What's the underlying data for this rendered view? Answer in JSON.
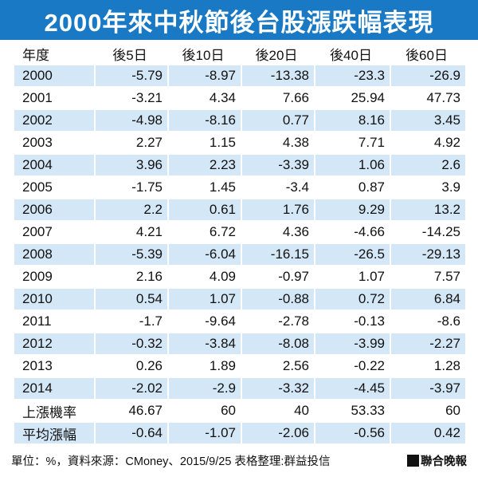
{
  "title": "2000年來中秋節後台股漲跌幅表現",
  "table": {
    "headers": [
      "年度",
      "後5日",
      "後10日",
      "後20日",
      "後40日",
      "後60日"
    ],
    "rows": [
      [
        "2000",
        "-5.79",
        "-8.97",
        "-13.38",
        "-23.3",
        "-26.9"
      ],
      [
        "2001",
        "-3.21",
        "4.34",
        "7.66",
        "25.94",
        "47.73"
      ],
      [
        "2002",
        "-4.98",
        "-8.16",
        "0.77",
        "8.16",
        "3.45"
      ],
      [
        "2003",
        "2.27",
        "1.15",
        "4.38",
        "7.71",
        "4.92"
      ],
      [
        "2004",
        "3.96",
        "2.23",
        "-3.39",
        "1.06",
        "2.6"
      ],
      [
        "2005",
        "-1.75",
        "1.45",
        "-3.4",
        "0.87",
        "3.9"
      ],
      [
        "2006",
        "2.2",
        "0.61",
        "1.76",
        "9.29",
        "13.2"
      ],
      [
        "2007",
        "4.21",
        "6.72",
        "4.36",
        "-4.66",
        "-14.25"
      ],
      [
        "2008",
        "-5.39",
        "-6.04",
        "-16.15",
        "-26.5",
        "-29.13"
      ],
      [
        "2009",
        "2.16",
        "4.09",
        "-0.97",
        "1.07",
        "7.57"
      ],
      [
        "2010",
        "0.54",
        "1.07",
        "-0.88",
        "0.72",
        "6.84"
      ],
      [
        "2011",
        "-1.7",
        "-9.64",
        "-2.78",
        "-0.13",
        "-8.6"
      ],
      [
        "2012",
        "-0.32",
        "-3.84",
        "-8.08",
        "-3.99",
        "-2.27"
      ],
      [
        "2013",
        "0.26",
        "1.89",
        "2.56",
        "-0.22",
        "1.28"
      ],
      [
        "2014",
        "-2.02",
        "-2.9",
        "-3.32",
        "-4.45",
        "-3.97"
      ],
      [
        "上漲機率",
        "46.67",
        "60",
        "40",
        "53.33",
        "60"
      ],
      [
        "平均漲幅",
        "-0.64",
        "-1.07",
        "-2.06",
        "-0.56",
        "0.42"
      ]
    ]
  },
  "footer": {
    "source": "單位：%，資料來源：CMoney、2015/9/25 表格整理:群益投信",
    "brand": "聯合晚報"
  },
  "colors": {
    "title_bar": "#1a79c4",
    "row_stripe": "#d3e7f6",
    "text": "#111111"
  }
}
